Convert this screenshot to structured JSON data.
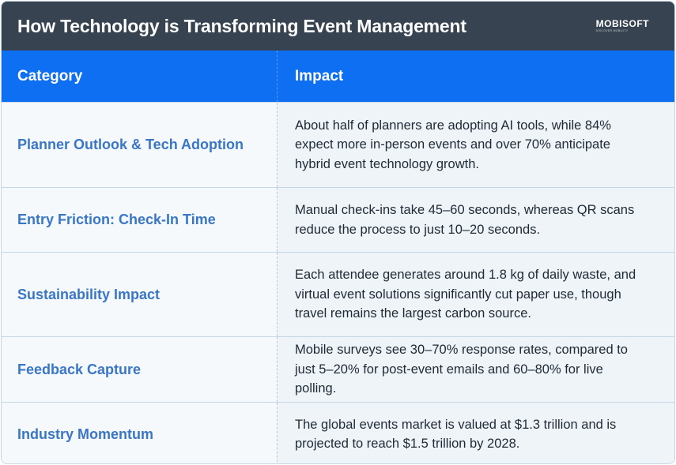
{
  "header": {
    "title": "How Technology is Transforming Event Management",
    "logo_text": "MOBISOFT",
    "logo_tagline": "DISCOVER MOBILITY"
  },
  "table": {
    "columns": [
      "Category",
      "Impact"
    ],
    "rows": [
      {
        "category": "Planner Outlook & Tech Adoption",
        "impact": "About half of planners are adopting AI tools, while 84% expect more in-person events and over 70% anticipate hybrid event technology growth."
      },
      {
        "category": "Entry Friction: Check-In Time",
        "impact": "Manual check-ins take 45–60 seconds, whereas QR scans reduce the process to just 10–20 seconds."
      },
      {
        "category": "Sustainability Impact",
        "impact": "Each attendee generates around 1.8 kg of daily waste, and virtual event solutions significantly cut paper use, though travel remains the largest carbon source."
      },
      {
        "category": "Feedback Capture",
        "impact": "Mobile surveys see 30–70% response rates, compared to just 5–20% for post-event emails and 60–80% for live polling."
      },
      {
        "category": "Industry Momentum",
        "impact": "The global events market is valued at $1.3 trillion and is projected to reach $1.5 trillion by 2028."
      }
    ]
  },
  "colors": {
    "title_bar": "#374350",
    "header_row": "#0e6ff2",
    "category_text": "#3a76c6",
    "body_text": "#1f2a35"
  }
}
